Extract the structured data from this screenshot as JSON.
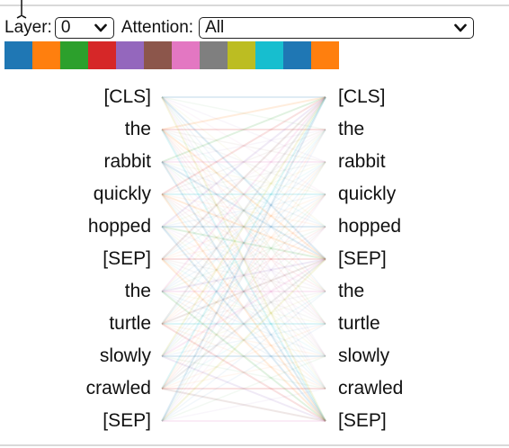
{
  "controls": {
    "layer_label": "Layer:",
    "layer_value": "0",
    "attention_label": "Attention:",
    "attention_value": "All"
  },
  "head_colors": [
    "#1f77b4",
    "#ff7f0e",
    "#2ca02c",
    "#d62728",
    "#9467bd",
    "#8c564b",
    "#e377c2",
    "#7f7f7f",
    "#bcbd22",
    "#17becf",
    "#1f77b4",
    "#ff7f0e"
  ],
  "tokens": {
    "left": [
      "[CLS]",
      "the",
      "rabbit",
      "quickly",
      "hopped",
      "[SEP]",
      "the",
      "turtle",
      "slowly",
      "crawled",
      "[SEP]"
    ],
    "right": [
      "[CLS]",
      "the",
      "rabbit",
      "quickly",
      "hopped",
      "[SEP]",
      "the",
      "turtle",
      "slowly",
      "crawled",
      "[SEP]"
    ]
  },
  "icons": {
    "cursor": "text-cursor-icon",
    "dropdown": "chevron-down-icon"
  }
}
